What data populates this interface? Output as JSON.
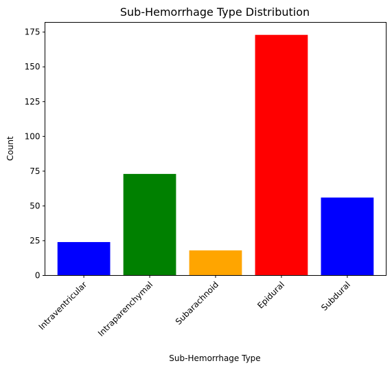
{
  "chart_data": {
    "type": "bar",
    "title": "Sub-Hemorrhage Type Distribution",
    "xlabel": "Sub-Hemorrhage Type",
    "ylabel": "Count",
    "categories": [
      "Intraventricular",
      "Intraparenchymal",
      "Subarachnoid",
      "Epidural",
      "Subdural"
    ],
    "values": [
      24,
      73,
      18,
      173,
      56
    ],
    "colors": [
      "#0000ff",
      "#008000",
      "#ffa500",
      "#ff0000",
      "#0000ff"
    ],
    "ylim": [
      0,
      182
    ],
    "yticks": [
      0,
      25,
      50,
      75,
      100,
      125,
      150,
      175
    ],
    "grid": false,
    "xtick_rotation": 45
  }
}
